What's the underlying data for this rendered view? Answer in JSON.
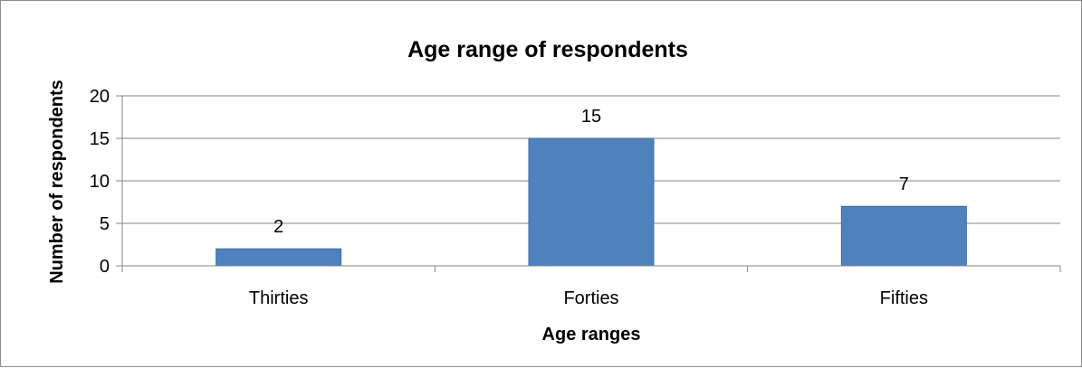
{
  "chart_data": {
    "type": "bar",
    "title": "Age range of respondents",
    "xlabel": "Age ranges",
    "ylabel": "Number of respondents",
    "categories": [
      "Thirties",
      "Forties",
      "Fifties"
    ],
    "values": [
      2,
      15,
      7
    ],
    "data_labels": [
      "2",
      "15",
      "7"
    ],
    "ylim": [
      0,
      20
    ],
    "yticks": [
      0,
      5,
      10,
      15,
      20
    ],
    "ytick_labels": [
      "0",
      "5",
      "10",
      "15",
      "20"
    ],
    "grid": true,
    "legend": "none",
    "colors": {
      "bar": "#4F81BD",
      "bar_edge": "#3A6CA8",
      "gridline": "#868686",
      "axis": "#868686"
    }
  }
}
